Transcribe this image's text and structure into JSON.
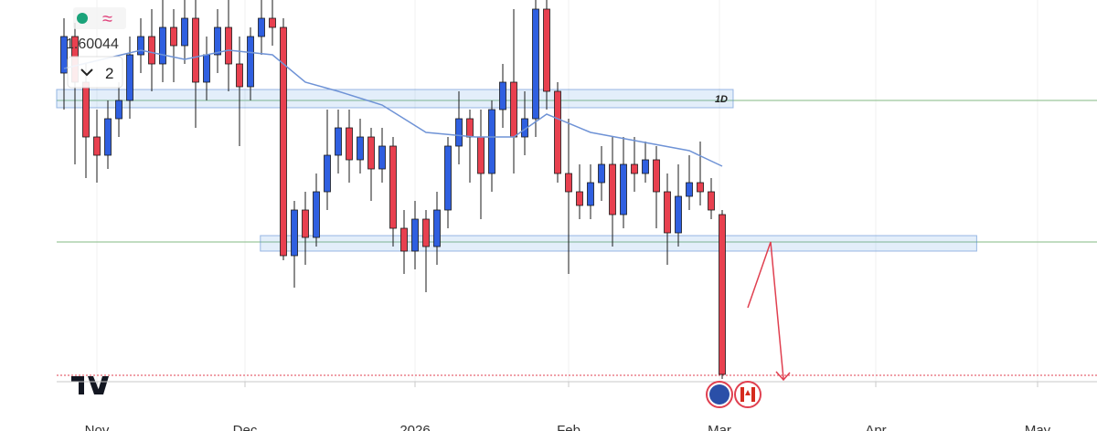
{
  "chart_data": {
    "type": "candlestick",
    "legend_price": "1.60044",
    "legend_count": "2",
    "ylim": [
      1.58,
      1.624
    ],
    "xticks": [
      {
        "value": 3,
        "label": "Nov"
      },
      {
        "value": 16.5,
        "label": "Dec"
      },
      {
        "value": 32,
        "label": "2026"
      },
      {
        "value": 46,
        "label": "Feb"
      },
      {
        "value": 59.75,
        "label": "Mar"
      },
      {
        "value": 74,
        "label": "Apr"
      },
      {
        "value": 88.75,
        "label": "May"
      }
    ],
    "up_color": "#2f5fe0",
    "down_color": "#e8404f",
    "candles": [
      {
        "o": 1.616,
        "h": 1.622,
        "l": 1.612,
        "c": 1.62
      },
      {
        "o": 1.62,
        "h": 1.6215,
        "l": 1.606,
        "c": 1.615
      },
      {
        "o": 1.615,
        "h": 1.617,
        "l": 1.6045,
        "c": 1.609
      },
      {
        "o": 1.609,
        "h": 1.612,
        "l": 1.604,
        "c": 1.607
      },
      {
        "o": 1.607,
        "h": 1.613,
        "l": 1.6055,
        "c": 1.611
      },
      {
        "o": 1.611,
        "h": 1.615,
        "l": 1.609,
        "c": 1.613
      },
      {
        "o": 1.613,
        "h": 1.62,
        "l": 1.611,
        "c": 1.618
      },
      {
        "o": 1.618,
        "h": 1.622,
        "l": 1.616,
        "c": 1.62
      },
      {
        "o": 1.62,
        "h": 1.623,
        "l": 1.614,
        "c": 1.617
      },
      {
        "o": 1.617,
        "h": 1.624,
        "l": 1.615,
        "c": 1.621
      },
      {
        "o": 1.621,
        "h": 1.623,
        "l": 1.615,
        "c": 1.619
      },
      {
        "o": 1.619,
        "h": 1.624,
        "l": 1.617,
        "c": 1.622
      },
      {
        "o": 1.622,
        "h": 1.624,
        "l": 1.61,
        "c": 1.615
      },
      {
        "o": 1.615,
        "h": 1.62,
        "l": 1.613,
        "c": 1.618
      },
      {
        "o": 1.618,
        "h": 1.623,
        "l": 1.616,
        "c": 1.621
      },
      {
        "o": 1.621,
        "h": 1.624,
        "l": 1.614,
        "c": 1.617
      },
      {
        "o": 1.617,
        "h": 1.62,
        "l": 1.608,
        "c": 1.6145
      },
      {
        "o": 1.6145,
        "h": 1.621,
        "l": 1.613,
        "c": 1.62
      },
      {
        "o": 1.62,
        "h": 1.624,
        "l": 1.618,
        "c": 1.622
      },
      {
        "o": 1.622,
        "h": 1.624,
        "l": 1.619,
        "c": 1.621
      },
      {
        "o": 1.621,
        "h": 1.622,
        "l": 1.5955,
        "c": 1.596
      },
      {
        "o": 1.596,
        "h": 1.602,
        "l": 1.5925,
        "c": 1.601
      },
      {
        "o": 1.601,
        "h": 1.603,
        "l": 1.595,
        "c": 1.598
      },
      {
        "o": 1.598,
        "h": 1.605,
        "l": 1.597,
        "c": 1.603
      },
      {
        "o": 1.603,
        "h": 1.612,
        "l": 1.601,
        "c": 1.607
      },
      {
        "o": 1.607,
        "h": 1.612,
        "l": 1.605,
        "c": 1.61
      },
      {
        "o": 1.61,
        "h": 1.612,
        "l": 1.604,
        "c": 1.6065
      },
      {
        "o": 1.6065,
        "h": 1.611,
        "l": 1.605,
        "c": 1.609
      },
      {
        "o": 1.609,
        "h": 1.61,
        "l": 1.602,
        "c": 1.6055
      },
      {
        "o": 1.6055,
        "h": 1.61,
        "l": 1.604,
        "c": 1.608
      },
      {
        "o": 1.608,
        "h": 1.609,
        "l": 1.597,
        "c": 1.599
      },
      {
        "o": 1.599,
        "h": 1.601,
        "l": 1.594,
        "c": 1.5965
      },
      {
        "o": 1.5965,
        "h": 1.602,
        "l": 1.5945,
        "c": 1.6
      },
      {
        "o": 1.6,
        "h": 1.601,
        "l": 1.592,
        "c": 1.597
      },
      {
        "o": 1.597,
        "h": 1.603,
        "l": 1.595,
        "c": 1.601
      },
      {
        "o": 1.601,
        "h": 1.609,
        "l": 1.599,
        "c": 1.608
      },
      {
        "o": 1.608,
        "h": 1.614,
        "l": 1.606,
        "c": 1.611
      },
      {
        "o": 1.611,
        "h": 1.612,
        "l": 1.604,
        "c": 1.609
      },
      {
        "o": 1.609,
        "h": 1.612,
        "l": 1.6,
        "c": 1.605
      },
      {
        "o": 1.605,
        "h": 1.613,
        "l": 1.603,
        "c": 1.612
      },
      {
        "o": 1.612,
        "h": 1.617,
        "l": 1.61,
        "c": 1.615
      },
      {
        "o": 1.615,
        "h": 1.623,
        "l": 1.605,
        "c": 1.609
      },
      {
        "o": 1.609,
        "h": 1.614,
        "l": 1.607,
        "c": 1.611
      },
      {
        "o": 1.611,
        "h": 1.624,
        "l": 1.609,
        "c": 1.623
      },
      {
        "o": 1.623,
        "h": 1.624,
        "l": 1.612,
        "c": 1.614
      },
      {
        "o": 1.614,
        "h": 1.615,
        "l": 1.604,
        "c": 1.605
      },
      {
        "o": 1.605,
        "h": 1.611,
        "l": 1.594,
        "c": 1.603
      },
      {
        "o": 1.603,
        "h": 1.606,
        "l": 1.6,
        "c": 1.6015
      },
      {
        "o": 1.6015,
        "h": 1.606,
        "l": 1.6,
        "c": 1.604
      },
      {
        "o": 1.604,
        "h": 1.608,
        "l": 1.602,
        "c": 1.606
      },
      {
        "o": 1.606,
        "h": 1.609,
        "l": 1.597,
        "c": 1.6005
      },
      {
        "o": 1.6005,
        "h": 1.609,
        "l": 1.599,
        "c": 1.606
      },
      {
        "o": 1.606,
        "h": 1.609,
        "l": 1.603,
        "c": 1.605
      },
      {
        "o": 1.605,
        "h": 1.6085,
        "l": 1.604,
        "c": 1.6065
      },
      {
        "o": 1.6065,
        "h": 1.608,
        "l": 1.599,
        "c": 1.603
      },
      {
        "o": 1.603,
        "h": 1.605,
        "l": 1.595,
        "c": 1.5985
      },
      {
        "o": 1.5985,
        "h": 1.606,
        "l": 1.597,
        "c": 1.6025
      },
      {
        "o": 1.6025,
        "h": 1.607,
        "l": 1.601,
        "c": 1.604
      },
      {
        "o": 1.604,
        "h": 1.6085,
        "l": 1.6015,
        "c": 1.603
      },
      {
        "o": 1.603,
        "h": 1.6045,
        "l": 1.6,
        "c": 1.601
      },
      {
        "o": 1.6005,
        "h": 1.601,
        "l": 1.5825,
        "c": 1.583
      }
    ],
    "ma": {
      "color": "#6f93d6",
      "x": [
        0,
        7,
        11,
        15,
        19,
        22,
        25,
        29,
        33,
        37.5,
        41,
        44,
        48,
        52.5,
        57,
        60
      ],
      "values": [
        1.6165,
        1.6185,
        1.6175,
        1.6185,
        1.618,
        1.615,
        1.614,
        1.6125,
        1.6095,
        1.609,
        1.609,
        1.6115,
        1.6095,
        1.6085,
        1.6075,
        1.6058
      ]
    },
    "zones": [
      {
        "label": "1D",
        "ylim": [
          1.6122,
          1.6142
        ],
        "xlim": [
          -0.67,
          61
        ]
      },
      {
        "ylim": [
          1.5965,
          1.5982
        ],
        "xlim": [
          17.9,
          83.2
        ]
      }
    ],
    "levels": [
      {
        "value": 1.613,
        "color": "#9cc79c"
      },
      {
        "value": 1.5975,
        "color": "#9cc79c"
      }
    ],
    "last_price_line": 1.5829
  }
}
